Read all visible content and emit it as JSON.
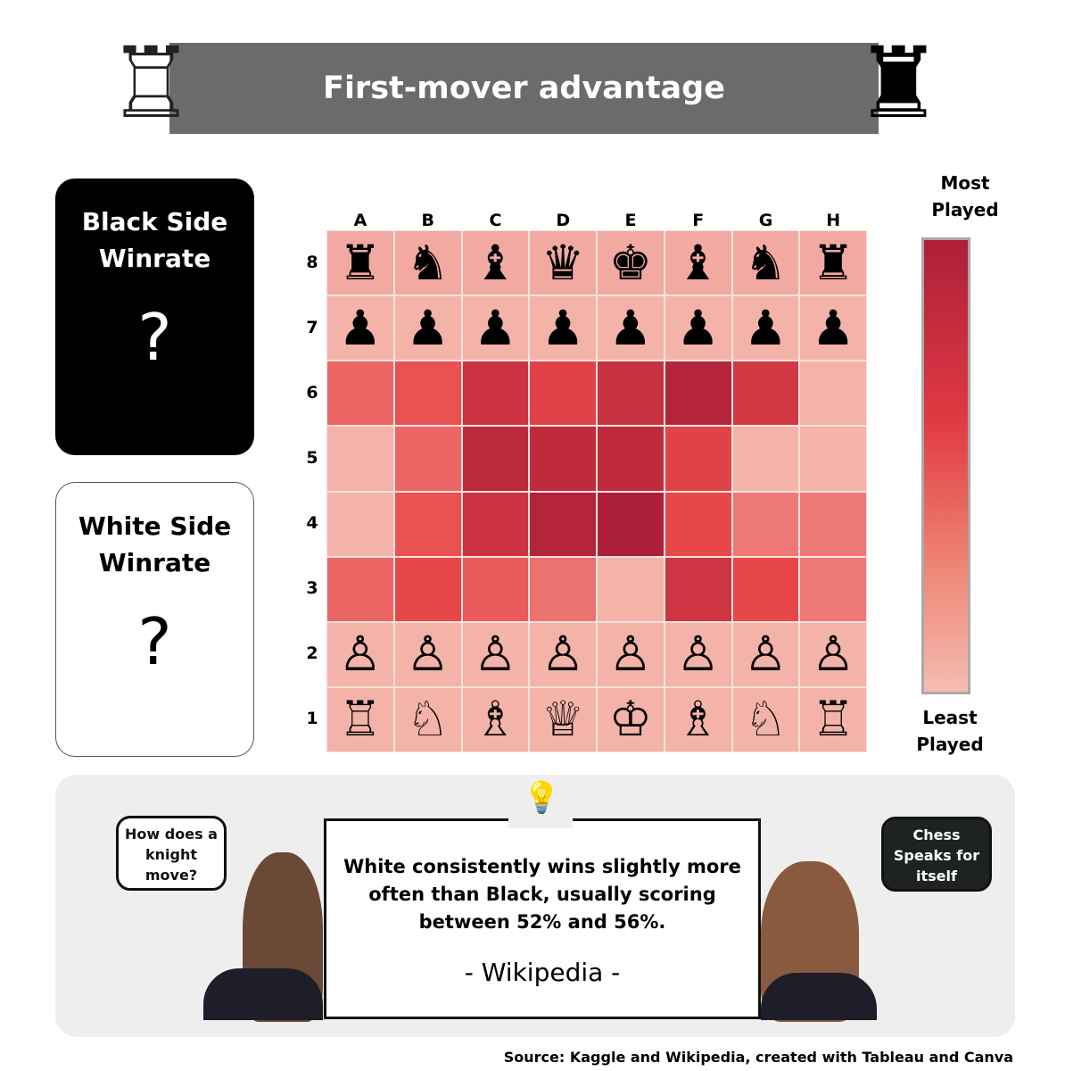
{
  "header": {
    "title": "First-mover advantage"
  },
  "cards": {
    "black": {
      "title": "Black Side Winrate",
      "value": "?"
    },
    "white": {
      "title": "White Side Winrate",
      "value": "?"
    }
  },
  "legend": {
    "top": "Most Played",
    "bottom": "Least Played",
    "colors": {
      "least": "#f4bdb2",
      "mid": "#e8474a",
      "most": "#ad1f38"
    }
  },
  "chart_data": {
    "type": "heatmap",
    "title": "",
    "x": [
      "A",
      "B",
      "C",
      "D",
      "E",
      "F",
      "G",
      "H"
    ],
    "y": [
      "8",
      "7",
      "6",
      "5",
      "4",
      "3",
      "2",
      "1"
    ],
    "value_meaning": "relative play frequency (0 = least played, 1 = most played)",
    "values": [
      [
        0.1,
        0.1,
        0.1,
        0.1,
        0.1,
        0.1,
        0.1,
        0.1
      ],
      [
        0.05,
        0.05,
        0.05,
        0.05,
        0.05,
        0.05,
        0.05,
        0.05
      ],
      [
        0.45,
        0.55,
        0.8,
        0.65,
        0.82,
        0.95,
        0.75,
        0.05
      ],
      [
        0.05,
        0.45,
        0.9,
        0.88,
        0.88,
        0.65,
        0.05,
        0.05
      ],
      [
        0.05,
        0.55,
        0.8,
        0.95,
        1.0,
        0.6,
        0.35,
        0.35
      ],
      [
        0.45,
        0.6,
        0.5,
        0.38,
        0.05,
        0.78,
        0.6,
        0.35
      ],
      [
        0.05,
        0.05,
        0.05,
        0.05,
        0.05,
        0.05,
        0.05,
        0.05
      ],
      [
        0.05,
        0.05,
        0.05,
        0.05,
        0.05,
        0.05,
        0.05,
        0.05
      ]
    ],
    "pieces": [
      [
        "♜",
        "♞",
        "♝",
        "♛",
        "♚",
        "♝",
        "♞",
        "♜"
      ],
      [
        "♟",
        "♟",
        "♟",
        "♟",
        "♟",
        "♟",
        "♟",
        "♟"
      ],
      [
        "",
        "",
        "",
        "",
        "",
        "",
        "",
        ""
      ],
      [
        "",
        "",
        "",
        "",
        "",
        "",
        "",
        ""
      ],
      [
        "",
        "",
        "",
        "",
        "",
        "",
        "",
        ""
      ],
      [
        "",
        "",
        "",
        "",
        "",
        "",
        "",
        ""
      ],
      [
        "♙",
        "♙",
        "♙",
        "♙",
        "♙",
        "♙",
        "♙",
        "♙"
      ],
      [
        "♖",
        "♘",
        "♗",
        "♕",
        "♔",
        "♗",
        "♘",
        "♖"
      ]
    ]
  },
  "quote": {
    "text": "White consistently wins slightly more often than Black, usually scoring between 52% and 56%.",
    "attribution": "- Wikipedia -"
  },
  "bubbles": {
    "left": "How does a knight move?",
    "right": "Chess Speaks for itself"
  },
  "icons": {
    "left_rook": "♖",
    "right_rook": "♜",
    "bulb": "💡"
  },
  "footer": {
    "source": "Source: Kaggle and Wikipedia, created with Tableau and Canva"
  }
}
